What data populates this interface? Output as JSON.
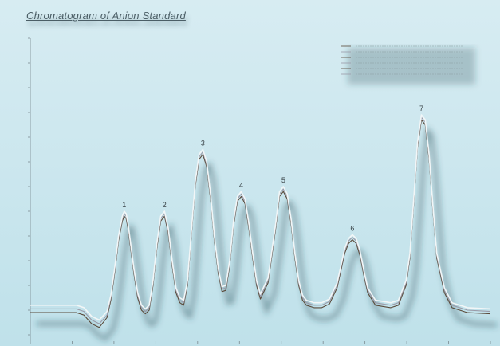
{
  "chart_data": {
    "type": "line",
    "title": "Chromatogram of Anion Standard",
    "xlabel": "",
    "ylabel": "",
    "xlim": [
      0,
      12
    ],
    "ylim": [
      -0.5,
      11.5
    ],
    "grid": false,
    "legend_position": "top-right",
    "peak_labels": [
      "1",
      "2",
      "3",
      "4",
      "5",
      "6",
      "7"
    ],
    "series": [
      {
        "color": "#5a4a3a",
        "x": [
          0,
          0.5,
          1.0,
          1.2,
          1.4,
          1.6,
          1.8,
          2.0,
          2.1,
          2.2,
          2.3,
          2.4,
          2.45,
          2.5,
          2.55,
          2.6,
          2.7,
          2.8,
          2.9,
          3.0,
          3.1,
          3.2,
          3.3,
          3.4,
          3.5,
          3.6,
          3.7,
          3.8,
          3.9,
          4.0,
          4.1,
          4.2,
          4.3,
          4.4,
          4.5,
          4.6,
          4.7,
          4.8,
          4.9,
          5.0,
          5.1,
          5.2,
          5.3,
          5.4,
          5.5,
          5.6,
          5.7,
          5.8,
          5.9,
          6.0,
          6.2,
          6.4,
          6.5,
          6.6,
          6.7,
          6.8,
          6.9,
          7.0,
          7.1,
          7.2,
          7.3,
          7.4,
          7.6,
          7.8,
          8.0,
          8.2,
          8.3,
          8.4,
          8.5,
          8.6,
          8.7,
          8.8,
          9.0,
          9.2,
          9.4,
          9.6,
          9.8,
          9.9,
          10.0,
          10.1,
          10.2,
          10.3,
          10.4,
          10.5,
          10.6,
          10.8,
          11.0,
          11.4,
          12.0
        ],
        "y": [
          0.4,
          0.4,
          0.4,
          0.4,
          0.3,
          -0.05,
          -0.2,
          0.2,
          0.9,
          2.0,
          3.3,
          4.1,
          4.3,
          4.2,
          3.8,
          3.2,
          2.0,
          1.0,
          0.5,
          0.35,
          0.5,
          1.5,
          3.0,
          4.1,
          4.3,
          3.6,
          2.3,
          1.2,
          0.8,
          0.7,
          1.5,
          3.5,
          5.5,
          6.6,
          6.8,
          6.3,
          5.0,
          3.3,
          2.0,
          1.25,
          1.3,
          2.3,
          3.9,
          4.9,
          5.1,
          4.8,
          3.8,
          2.6,
          1.5,
          0.95,
          1.6,
          3.8,
          5.1,
          5.3,
          5.0,
          4.0,
          2.6,
          1.5,
          0.9,
          0.7,
          0.65,
          0.6,
          0.6,
          0.75,
          1.4,
          2.8,
          3.2,
          3.35,
          3.2,
          2.7,
          1.9,
          1.2,
          0.7,
          0.65,
          0.6,
          0.7,
          1.5,
          2.6,
          4.8,
          7.1,
          8.2,
          8.0,
          6.6,
          4.5,
          2.6,
          1.2,
          0.6,
          0.4,
          0.35
        ]
      },
      {
        "color": "#9a9aa8",
        "x": [
          0,
          0.5,
          1.0,
          1.2,
          1.4,
          1.6,
          1.8,
          2.0,
          2.1,
          2.2,
          2.3,
          2.4,
          2.45,
          2.5,
          2.55,
          2.6,
          2.7,
          2.8,
          2.9,
          3.0,
          3.1,
          3.2,
          3.3,
          3.4,
          3.5,
          3.6,
          3.7,
          3.8,
          3.9,
          4.0,
          4.1,
          4.2,
          4.3,
          4.4,
          4.5,
          4.6,
          4.7,
          4.8,
          4.9,
          5.0,
          5.1,
          5.2,
          5.3,
          5.4,
          5.5,
          5.6,
          5.7,
          5.8,
          5.9,
          6.0,
          6.2,
          6.4,
          6.5,
          6.6,
          6.7,
          6.8,
          6.9,
          7.0,
          7.1,
          7.2,
          7.3,
          7.4,
          7.6,
          7.8,
          8.0,
          8.2,
          8.3,
          8.4,
          8.5,
          8.6,
          8.7,
          8.8,
          9.0,
          9.2,
          9.4,
          9.6,
          9.8,
          9.9,
          10.0,
          10.1,
          10.2,
          10.3,
          10.4,
          10.5,
          10.6,
          10.8,
          11.0,
          11.4,
          12.0
        ],
        "y": [
          0.55,
          0.55,
          0.55,
          0.55,
          0.45,
          0.1,
          -0.05,
          0.3,
          1.0,
          2.1,
          3.4,
          4.2,
          4.4,
          4.3,
          3.9,
          3.3,
          2.1,
          1.1,
          0.6,
          0.45,
          0.6,
          1.6,
          3.1,
          4.2,
          4.4,
          3.7,
          2.4,
          1.3,
          0.9,
          0.8,
          1.6,
          3.6,
          5.6,
          6.7,
          6.9,
          6.4,
          5.1,
          3.4,
          2.1,
          1.35,
          1.4,
          2.4,
          4.0,
          5.0,
          5.2,
          4.9,
          3.9,
          2.7,
          1.6,
          1.05,
          1.7,
          3.9,
          5.2,
          5.4,
          5.1,
          4.1,
          2.7,
          1.6,
          1.0,
          0.8,
          0.75,
          0.7,
          0.7,
          0.85,
          1.5,
          2.9,
          3.3,
          3.45,
          3.3,
          2.8,
          2.0,
          1.3,
          0.8,
          0.75,
          0.7,
          0.8,
          1.6,
          2.7,
          4.9,
          7.2,
          8.3,
          8.1,
          6.7,
          4.6,
          2.7,
          1.3,
          0.7,
          0.5,
          0.45
        ]
      },
      {
        "color": "#f2f6f7",
        "x": [
          0,
          0.5,
          1.0,
          1.2,
          1.4,
          1.6,
          1.8,
          2.0,
          2.1,
          2.2,
          2.3,
          2.4,
          2.45,
          2.5,
          2.55,
          2.6,
          2.7,
          2.8,
          2.9,
          3.0,
          3.1,
          3.2,
          3.3,
          3.4,
          3.5,
          3.6,
          3.7,
          3.8,
          3.9,
          4.0,
          4.1,
          4.2,
          4.3,
          4.4,
          4.5,
          4.6,
          4.7,
          4.8,
          4.9,
          5.0,
          5.1,
          5.2,
          5.3,
          5.4,
          5.5,
          5.6,
          5.7,
          5.8,
          5.9,
          6.0,
          6.2,
          6.4,
          6.5,
          6.6,
          6.7,
          6.8,
          6.9,
          7.0,
          7.1,
          7.2,
          7.3,
          7.4,
          7.6,
          7.8,
          8.0,
          8.2,
          8.3,
          8.4,
          8.5,
          8.6,
          8.7,
          8.8,
          9.0,
          9.2,
          9.4,
          9.6,
          9.8,
          9.9,
          10.0,
          10.1,
          10.2,
          10.3,
          10.4,
          10.5,
          10.6,
          10.8,
          11.0,
          11.4,
          12.0
        ],
        "y": [
          0.7,
          0.7,
          0.7,
          0.7,
          0.6,
          0.25,
          0.1,
          0.45,
          1.1,
          2.2,
          3.5,
          4.3,
          4.5,
          4.4,
          4.0,
          3.4,
          2.2,
          1.2,
          0.7,
          0.55,
          0.7,
          1.7,
          3.2,
          4.3,
          4.5,
          3.8,
          2.5,
          1.4,
          1.0,
          0.9,
          1.7,
          3.7,
          5.7,
          6.8,
          7.0,
          6.5,
          5.2,
          3.5,
          2.2,
          1.45,
          1.5,
          2.5,
          4.1,
          5.1,
          5.3,
          5.0,
          4.0,
          2.8,
          1.7,
          1.15,
          1.8,
          4.0,
          5.3,
          5.5,
          5.2,
          4.2,
          2.8,
          1.7,
          1.1,
          0.9,
          0.85,
          0.8,
          0.8,
          0.95,
          1.6,
          3.0,
          3.4,
          3.55,
          3.4,
          2.9,
          2.1,
          1.4,
          0.9,
          0.85,
          0.8,
          0.9,
          1.7,
          2.8,
          5.0,
          7.3,
          8.4,
          8.2,
          6.8,
          4.7,
          2.8,
          1.4,
          0.8,
          0.6,
          0.55
        ]
      }
    ],
    "peaks": [
      {
        "label": "1",
        "x": 2.45,
        "y": 4.4
      },
      {
        "label": "2",
        "x": 3.5,
        "y": 4.4
      },
      {
        "label": "3",
        "x": 4.5,
        "y": 6.9
      },
      {
        "label": "4",
        "x": 5.5,
        "y": 5.2
      },
      {
        "label": "5",
        "x": 6.6,
        "y": 5.4
      },
      {
        "label": "6",
        "x": 8.4,
        "y": 3.45
      },
      {
        "label": "7",
        "x": 10.2,
        "y": 8.3
      }
    ]
  }
}
